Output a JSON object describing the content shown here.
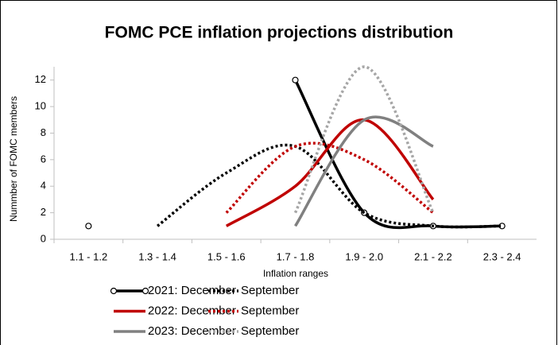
{
  "chart_data": {
    "type": "line",
    "title": "FOMC PCE inflation projections distribution",
    "xlabel": "Inflation ranges",
    "ylabel": "Nummber of FOMC members",
    "categories": [
      "1.1 - 1.2",
      "1.3 - 1.4",
      "1.5 - 1.6",
      "1.7 - 1.8",
      "1.9 - 2.0",
      "2.1 - 2.2",
      "2.3 - 2.4"
    ],
    "ylim": [
      0,
      13
    ],
    "yticks": [
      0,
      2,
      4,
      6,
      8,
      10,
      12
    ],
    "grid": false,
    "smooth": true,
    "series": [
      {
        "name": "2021: December",
        "color": "#000000",
        "dash": false,
        "marker": true,
        "values": [
          1,
          null,
          null,
          12,
          2,
          1,
          1
        ]
      },
      {
        "name": "September",
        "color": "#000000",
        "dash": true,
        "marker": false,
        "values": [
          null,
          1,
          5,
          7,
          2,
          1,
          1
        ]
      },
      {
        "name": "2022: December",
        "color": "#c00000",
        "dash": false,
        "marker": false,
        "values": [
          null,
          null,
          1,
          4,
          9,
          3,
          null
        ]
      },
      {
        "name": "September",
        "color": "#c00000",
        "dash": true,
        "marker": false,
        "values": [
          null,
          null,
          2,
          7,
          6,
          2,
          null
        ]
      },
      {
        "name": "2023: December",
        "color": "#808080",
        "dash": false,
        "marker": false,
        "values": [
          null,
          null,
          null,
          1,
          9,
          7,
          null
        ]
      },
      {
        "name": "September",
        "color": "#a6a6a6",
        "dash": true,
        "marker": false,
        "values": [
          null,
          null,
          null,
          2,
          13,
          2,
          null
        ]
      }
    ]
  }
}
